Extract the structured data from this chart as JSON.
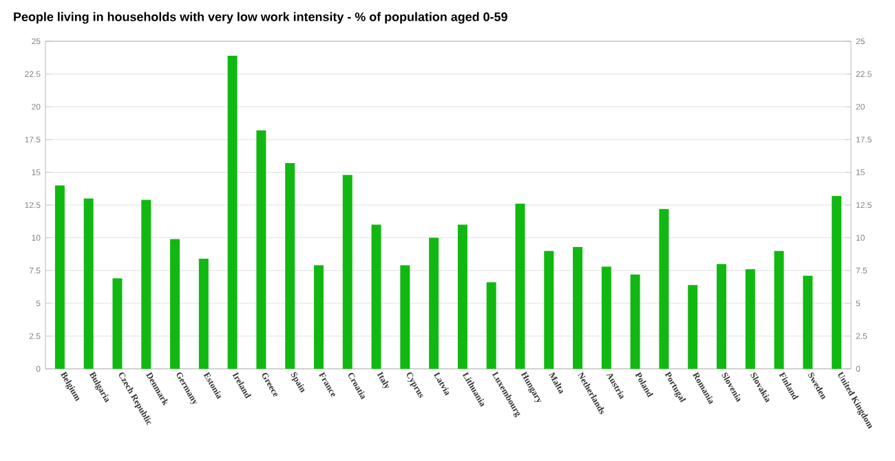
{
  "chart_data": {
    "type": "bar",
    "title": "People living in households with very low work intensity - % of population aged 0-59",
    "categories": [
      "Belgium",
      "Bulgaria",
      "Czech Republic",
      "Denmark",
      "Germany",
      "Estonia",
      "Ireland",
      "Greece",
      "Spain",
      "France",
      "Croatia",
      "Italy",
      "Cyprus",
      "Latvia",
      "Lithuania",
      "Luxembourg",
      "Hungary",
      "Malta",
      "Netherlands",
      "Austria",
      "Poland",
      "Portugal",
      "Romania",
      "Slovenia",
      "Slovakia",
      "Finland",
      "Sweden",
      "United Kingdom"
    ],
    "values": [
      14,
      13,
      6.9,
      12.9,
      9.9,
      8.4,
      23.9,
      18.2,
      15.7,
      7.9,
      14.8,
      11,
      7.9,
      10,
      11,
      6.6,
      12.6,
      9,
      9.3,
      7.8,
      7.2,
      12.2,
      6.4,
      8,
      7.6,
      9,
      7.1,
      13.2
    ],
    "color": "#12b812",
    "ylim": [
      0,
      25
    ],
    "yticks": [
      0,
      2.5,
      5,
      7.5,
      10,
      12.5,
      15,
      17.5,
      20,
      22.5,
      25
    ],
    "y2lim": [
      0,
      25
    ],
    "y2ticks": [
      0,
      2.5,
      5,
      7.5,
      10,
      12.5,
      15,
      17.5,
      20,
      22.5,
      25
    ],
    "grid": "y"
  }
}
